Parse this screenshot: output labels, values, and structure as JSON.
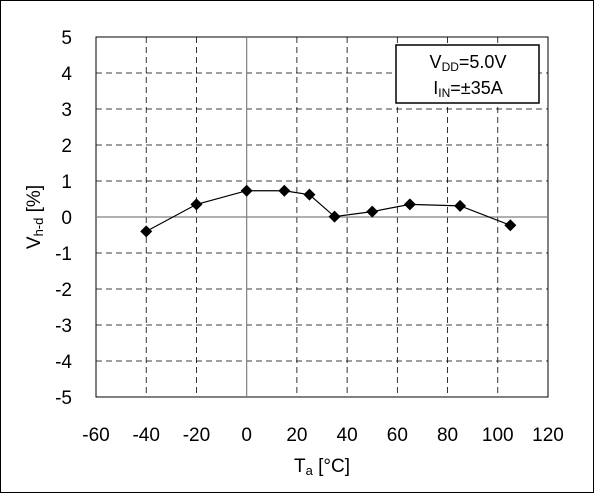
{
  "chart_data": {
    "type": "line",
    "x": [
      -40,
      -20,
      0,
      15,
      25,
      35,
      50,
      65,
      85,
      105
    ],
    "series": [
      {
        "values": [
          -0.4,
          0.35,
          0.73,
          0.73,
          0.62,
          0.01,
          0.15,
          0.35,
          0.31,
          -0.23
        ]
      }
    ],
    "xlim": [
      -60,
      120
    ],
    "ylim": [
      -5,
      5
    ],
    "x_ticks": [
      "-60",
      "-40",
      "-20",
      "0",
      "20",
      "40",
      "60",
      "80",
      "100",
      "120"
    ],
    "y_ticks": [
      "5",
      "4",
      "3",
      "2",
      "1",
      "0",
      "-1",
      "-2",
      "-3",
      "-4",
      "-5"
    ],
    "xlabel": {
      "main": "T",
      "sub": "a",
      "rest": " [°C]"
    },
    "ylabel": {
      "main": "V",
      "sub": "h-d",
      "rest": " [%]"
    },
    "legend_lines": [
      {
        "main": "V",
        "sub": "DD",
        "rest": "=5.0V"
      },
      {
        "main": "I",
        "sub": "IN",
        "rest": "=±35A"
      }
    ],
    "grid": true,
    "legend_position": "top-right",
    "marker": "diamond",
    "line_color": "#000000"
  }
}
